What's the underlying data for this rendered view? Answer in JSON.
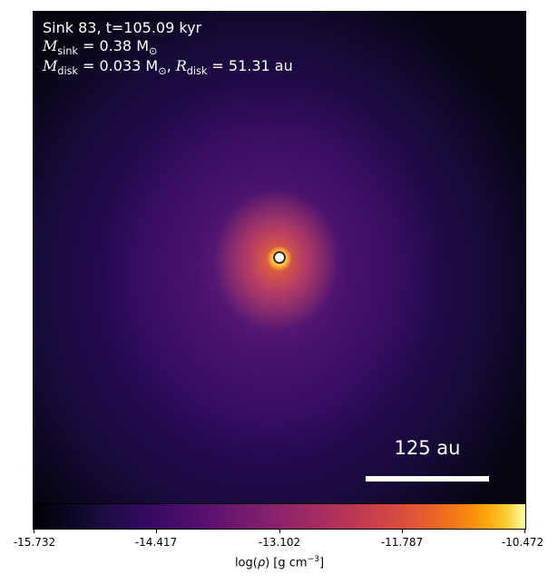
{
  "annotation": {
    "sink_line": "Sink 83, t=105.09 kyr",
    "msink_label": "M",
    "msink_sub": "sink",
    "msink_value": " = 0.38 M",
    "mdisk_label": "M",
    "mdisk_sub": "disk",
    "mdisk_value": " = 0.033 M",
    "rdisk_label": "R",
    "rdisk_sub": "disk",
    "rdisk_value": " = 51.31 au"
  },
  "scale_bar": {
    "label": "125 au"
  },
  "colorbar": {
    "ticks": [
      "-15.732",
      "-14.417",
      "-13.102",
      "-11.787",
      "-10.472"
    ],
    "label_prefix": "log(",
    "label_rho": "ρ",
    "label_suffix": ") [g cm",
    "label_exp": "−3",
    "label_close": "]",
    "colormap": "inferno"
  }
}
